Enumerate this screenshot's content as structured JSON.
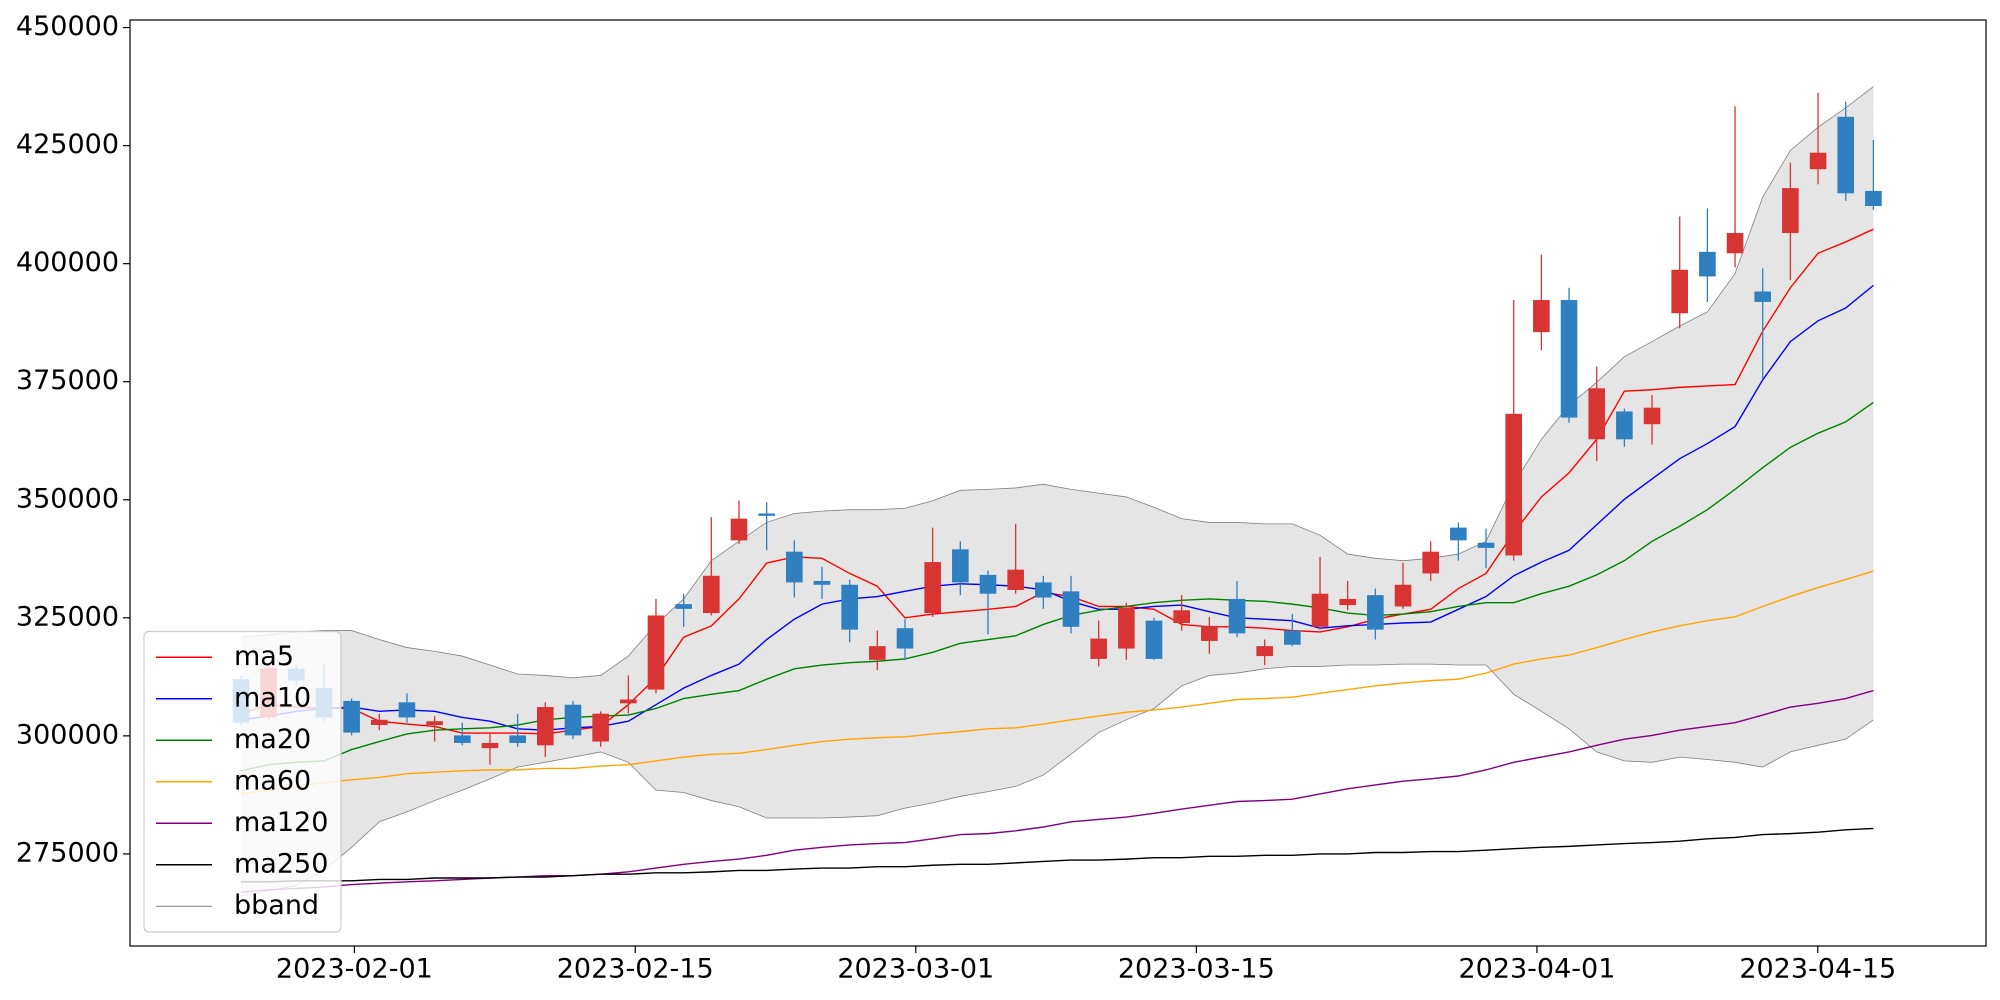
{
  "chart_data": {
    "type": "candlestick",
    "x": [
      0,
      1,
      2,
      3,
      4,
      5,
      6,
      7,
      8,
      9,
      10,
      11,
      12,
      13,
      14,
      15,
      16,
      17,
      18,
      19,
      20,
      21,
      22,
      23,
      24,
      25,
      26,
      27,
      28,
      29,
      30,
      31,
      32,
      33,
      34,
      35,
      36,
      37,
      38,
      39,
      40,
      41,
      42,
      43,
      44,
      45,
      46,
      47,
      48,
      49,
      50,
      51,
      52,
      53,
      54,
      55,
      56,
      57,
      58,
      59
    ],
    "xlim": [
      -4.01,
      63.07
    ],
    "xticks": [
      {
        "value": 4.1,
        "label": "2023-02-01"
      },
      {
        "value": 14.25,
        "label": "2023-02-15"
      },
      {
        "value": 24.39,
        "label": "2023-03-01"
      },
      {
        "value": 34.53,
        "label": "2023-03-15"
      },
      {
        "value": 46.84,
        "label": "2023-04-01"
      },
      {
        "value": 56.99,
        "label": "2023-04-15"
      }
    ],
    "ylim": [
      255500,
      451600
    ],
    "yticks": [
      275000,
      300000,
      325000,
      350000,
      375000,
      400000,
      425000,
      450000
    ],
    "candles": {
      "up_color": "#d93434",
      "down_color": "#2f7fc1",
      "open": [
        312000,
        303900,
        314200,
        310100,
        307400,
        302300,
        307100,
        302300,
        300100,
        297400,
        300100,
        298000,
        306600,
        298800,
        306900,
        309800,
        327900,
        326000,
        341400,
        347100,
        339000,
        332800,
        332000,
        316100,
        322800,
        326000,
        339500,
        334100,
        330900,
        332500,
        330600,
        316300,
        318500,
        324400,
        323900,
        320100,
        329000,
        316900,
        322300,
        323100,
        327700,
        329800,
        327400,
        334400,
        344100,
        340900,
        338200,
        385500,
        392300,
        362800,
        368700,
        366000,
        389500,
        402500,
        402200,
        394100,
        406500,
        420000,
        431100,
        415400
      ],
      "high": [
        312800,
        315200,
        315000,
        315200,
        307900,
        304700,
        309000,
        304200,
        302800,
        300400,
        304700,
        307100,
        307400,
        305200,
        312800,
        329000,
        330100,
        346300,
        349800,
        349500,
        341400,
        335800,
        333100,
        322300,
        324700,
        344100,
        341200,
        335000,
        344900,
        333900,
        333900,
        324400,
        328200,
        325000,
        329800,
        325200,
        332800,
        320400,
        325800,
        337900,
        332800,
        331200,
        336600,
        341200,
        345200,
        343900,
        392300,
        401900,
        394900,
        378200,
        369300,
        372200,
        410000,
        411700,
        433300,
        399000,
        421400,
        436200,
        434300,
        426200
      ],
      "low": [
        302300,
        303400,
        310900,
        303100,
        300100,
        301200,
        302800,
        298800,
        298000,
        293900,
        297700,
        295500,
        299300,
        297700,
        304700,
        309000,
        323100,
        325500,
        340600,
        339300,
        329300,
        329000,
        319800,
        313900,
        316100,
        325200,
        329800,
        321500,
        330100,
        326900,
        321700,
        314700,
        316100,
        316100,
        322300,
        317400,
        320900,
        315000,
        319000,
        322500,
        326600,
        320400,
        326900,
        332800,
        337100,
        335500,
        337100,
        381700,
        366300,
        358200,
        361200,
        361700,
        386300,
        391900,
        399200,
        375700,
        396500,
        416800,
        413300,
        411400
      ],
      "close": [
        302800,
        314400,
        311700,
        303900,
        300700,
        303400,
        303900,
        303100,
        298500,
        298500,
        298500,
        306100,
        300100,
        304700,
        307700,
        325500,
        326900,
        333900,
        346000,
        346600,
        332500,
        332000,
        322500,
        319000,
        318500,
        336800,
        332500,
        330100,
        335200,
        329300,
        323100,
        320600,
        327100,
        316300,
        326600,
        323300,
        321700,
        319000,
        319300,
        330100,
        329000,
        322500,
        332000,
        339000,
        341400,
        339800,
        368200,
        392300,
        367400,
        373600,
        362800,
        369500,
        398700,
        397300,
        406500,
        391900,
        416000,
        423500,
        414900,
        412200
      ]
    },
    "series": [
      {
        "name": "ma5",
        "color": "red",
        "values": [
          304700,
          306600,
          306100,
          305800,
          305800,
          303100,
          302500,
          302000,
          300600,
          300600,
          300600,
          300400,
          301200,
          302000,
          306600,
          312300,
          320900,
          323300,
          329000,
          336600,
          337900,
          337600,
          334400,
          331700,
          325000,
          325800,
          326300,
          326800,
          327400,
          330400,
          329500,
          327400,
          327400,
          326800,
          323600,
          323100,
          323100,
          322800,
          322300,
          322000,
          323100,
          324700,
          325800,
          326800,
          331200,
          334400,
          343000,
          350600,
          355700,
          362800,
          373000,
          373300,
          373800,
          374100,
          374400,
          385700,
          394900,
          402200,
          404600,
          407300
        ]
      },
      {
        "name": "ma10",
        "color": "blue",
        "values": [
          303400,
          304200,
          305200,
          305800,
          306100,
          305200,
          305500,
          305200,
          303900,
          303100,
          301500,
          301200,
          301700,
          302000,
          303100,
          306600,
          310100,
          312800,
          315200,
          320400,
          324700,
          327900,
          329000,
          329500,
          330600,
          331700,
          332200,
          332000,
          331700,
          330900,
          328500,
          326800,
          326800,
          327400,
          327700,
          326300,
          325000,
          324700,
          324400,
          322800,
          323300,
          323600,
          323900,
          324100,
          326800,
          329500,
          333900,
          336800,
          339300,
          344700,
          350100,
          354400,
          358700,
          361900,
          365500,
          375400,
          383500,
          387900,
          390600,
          395400
        ]
      },
      {
        "name": "ma20",
        "color": "green",
        "values": [
          292600,
          293900,
          294400,
          294700,
          297100,
          298800,
          300400,
          301200,
          301500,
          301700,
          302300,
          303400,
          303900,
          304200,
          304400,
          305800,
          307900,
          308800,
          309600,
          312000,
          314200,
          315000,
          315500,
          315800,
          316300,
          317700,
          319600,
          320400,
          321200,
          323600,
          325500,
          326600,
          327400,
          328200,
          328700,
          329000,
          328700,
          328500,
          327900,
          327100,
          326000,
          325500,
          325800,
          326300,
          327400,
          328200,
          328200,
          330100,
          331700,
          334100,
          337100,
          341200,
          344400,
          347900,
          352200,
          356800,
          361100,
          364100,
          366500,
          370600
        ]
      },
      {
        "name": "ma60",
        "color": "orange",
        "values": [
          287700,
          288500,
          289300,
          290100,
          290700,
          291200,
          292000,
          292300,
          292600,
          292800,
          292800,
          293100,
          293100,
          293600,
          293900,
          294700,
          295500,
          296100,
          296300,
          297100,
          298000,
          298800,
          299300,
          299600,
          299800,
          300400,
          300900,
          301500,
          301700,
          302500,
          303400,
          304200,
          305000,
          305500,
          306100,
          306900,
          307700,
          307900,
          308200,
          309000,
          309800,
          310600,
          311200,
          311700,
          312000,
          313300,
          315200,
          316300,
          317100,
          318700,
          320400,
          322000,
          323300,
          324400,
          325200,
          327400,
          329500,
          331400,
          333100,
          334900
        ]
      },
      {
        "name": "ma120",
        "color": "purple",
        "values": [
          266900,
          267400,
          267700,
          268000,
          268500,
          268800,
          269100,
          269300,
          269600,
          269900,
          270100,
          270400,
          270400,
          270700,
          271200,
          272000,
          272800,
          273400,
          273900,
          274700,
          275800,
          276400,
          276900,
          277200,
          277400,
          278200,
          279100,
          279300,
          279900,
          280700,
          281800,
          282300,
          282800,
          283600,
          284500,
          285300,
          286100,
          286300,
          286600,
          287700,
          288800,
          289600,
          290400,
          290900,
          291500,
          292800,
          294400,
          295500,
          296600,
          298000,
          299300,
          300100,
          301200,
          302000,
          302800,
          304400,
          306100,
          306900,
          307900,
          309600
        ]
      },
      {
        "name": "ma250",
        "color": "black",
        "values": [
          269100,
          269100,
          269300,
          269300,
          269300,
          269600,
          269600,
          269900,
          269900,
          269900,
          270100,
          270100,
          270400,
          270700,
          270700,
          271000,
          271000,
          271200,
          271500,
          271500,
          271800,
          272000,
          272000,
          272300,
          272300,
          272600,
          272800,
          272800,
          273100,
          273400,
          273700,
          273700,
          273900,
          274200,
          274200,
          274500,
          274500,
          274700,
          274700,
          275000,
          275000,
          275300,
          275300,
          275500,
          275500,
          275800,
          276100,
          276400,
          276600,
          276900,
          277200,
          277400,
          277700,
          278200,
          278500,
          279100,
          279300,
          279600,
          280100,
          280400
        ]
      },
      {
        "name": "bband",
        "color": "gray",
        "fill": "#e5e5e5",
        "upper": [
          320900,
          321400,
          322000,
          322300,
          322300,
          320400,
          318700,
          317900,
          316900,
          315000,
          313100,
          312800,
          312300,
          312800,
          316900,
          323600,
          329000,
          337100,
          341200,
          345200,
          347100,
          347600,
          347900,
          347900,
          348200,
          349800,
          352000,
          352200,
          352500,
          353300,
          352200,
          351400,
          350600,
          348400,
          346000,
          345200,
          345200,
          344900,
          344900,
          342500,
          338500,
          337600,
          337100,
          337600,
          338500,
          341200,
          353300,
          362800,
          370000,
          374900,
          380300,
          383500,
          386800,
          389800,
          397900,
          414100,
          424000,
          428900,
          433000,
          437500
        ],
        "lower": [
          266100,
          267200,
          268300,
          271500,
          276400,
          281800,
          283900,
          286300,
          288500,
          290900,
          293400,
          294400,
          295500,
          296600,
          294400,
          288500,
          288000,
          286300,
          285000,
          282600,
          282600,
          282600,
          282800,
          283100,
          284700,
          285800,
          287200,
          288200,
          289300,
          291700,
          296100,
          300700,
          303400,
          305800,
          310600,
          312800,
          313300,
          314200,
          314700,
          314700,
          315000,
          315000,
          315200,
          315200,
          315000,
          315000,
          308800,
          305200,
          301500,
          296600,
          294700,
          294400,
          295500,
          295000,
          294400,
          293400,
          296600,
          298000,
          299300,
          303400
        ]
      }
    ],
    "legend": "lower left"
  }
}
